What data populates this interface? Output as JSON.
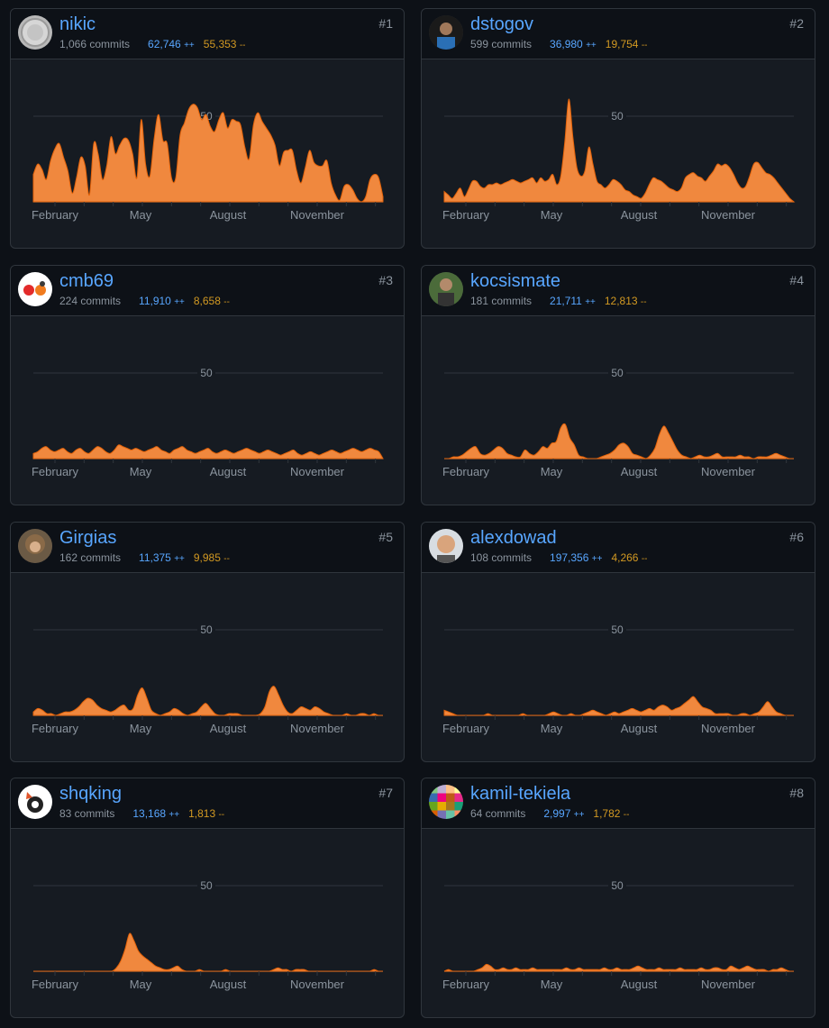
{
  "y_axis_label": "50",
  "months": [
    "February",
    "May",
    "August",
    "November"
  ],
  "colors": {
    "accent": "#58a6ff",
    "area": "#f0883e",
    "deletions": "#d29922",
    "background": "#0d1117"
  },
  "contributors": [
    {
      "rank": "#1",
      "username": "nikic",
      "commits": "1,066 commits",
      "additions": "62,746",
      "deletions": "55,353",
      "add_suffix": "++",
      "del_suffix": "--",
      "avatar_icon": "grey-coin-avatar",
      "weekly_commits": [
        16,
        22,
        19,
        13,
        24,
        31,
        34,
        26,
        18,
        5,
        14,
        26,
        21,
        4,
        34,
        28,
        13,
        21,
        38,
        28,
        33,
        37,
        36,
        28,
        14,
        48,
        22,
        15,
        37,
        51,
        36,
        34,
        14,
        14,
        39,
        46,
        54,
        57,
        55,
        48,
        51,
        44,
        41,
        48,
        52,
        43,
        48,
        47,
        45,
        32,
        25,
        45,
        52,
        47,
        43,
        39,
        33,
        21,
        29,
        30,
        30,
        18,
        11,
        20,
        30,
        23,
        21,
        21,
        24,
        11,
        4,
        1,
        9,
        10,
        7,
        2,
        0,
        3,
        13,
        16,
        14,
        3
      ]
    },
    {
      "rank": "#2",
      "username": "dstogov",
      "commits": "599 commits",
      "additions": "36,980",
      "deletions": "19,754",
      "add_suffix": "++",
      "del_suffix": "--",
      "avatar_icon": "man-photo-avatar",
      "weekly_commits": [
        6,
        4,
        2,
        5,
        8,
        3,
        7,
        12,
        12,
        9,
        8,
        10,
        10,
        11,
        10,
        11,
        12,
        13,
        12,
        11,
        12,
        13,
        14,
        11,
        14,
        12,
        13,
        16,
        10,
        15,
        35,
        60,
        38,
        20,
        15,
        18,
        32,
        22,
        12,
        10,
        8,
        10,
        13,
        12,
        10,
        7,
        6,
        4,
        3,
        2,
        5,
        10,
        14,
        13,
        12,
        10,
        8,
        7,
        6,
        8,
        14,
        16,
        17,
        15,
        14,
        12,
        15,
        18,
        22,
        21,
        22,
        20,
        16,
        11,
        8,
        9,
        15,
        22,
        23,
        20,
        17,
        16,
        14,
        11,
        8,
        5,
        2,
        0
      ]
    },
    {
      "rank": "#3",
      "username": "cmb69",
      "commits": "224 commits",
      "additions": "11,910",
      "deletions": "8,658",
      "add_suffix": "++",
      "del_suffix": "--",
      "avatar_icon": "elephant-avatar",
      "weekly_commits": [
        3,
        4,
        6,
        7,
        5,
        4,
        5,
        6,
        4,
        3,
        5,
        6,
        4,
        3,
        5,
        7,
        6,
        4,
        3,
        5,
        8,
        7,
        6,
        5,
        6,
        5,
        4,
        5,
        6,
        7,
        5,
        4,
        3,
        5,
        6,
        7,
        5,
        4,
        3,
        4,
        5,
        6,
        4,
        3,
        4,
        5,
        4,
        3,
        4,
        5,
        6,
        5,
        4,
        3,
        4,
        5,
        4,
        3,
        2,
        3,
        4,
        5,
        3,
        2,
        3,
        4,
        3,
        2,
        3,
        4,
        5,
        4,
        3,
        4,
        5,
        6,
        5,
        4,
        5,
        6,
        5,
        4,
        0
      ]
    },
    {
      "rank": "#4",
      "username": "kocsismate",
      "commits": "181 commits",
      "additions": "21,711",
      "deletions": "12,813",
      "add_suffix": "++",
      "del_suffix": "--",
      "avatar_icon": "man-forest-avatar",
      "weekly_commits": [
        0,
        0,
        1,
        1,
        2,
        4,
        6,
        7,
        3,
        2,
        3,
        5,
        7,
        6,
        3,
        2,
        1,
        1,
        5,
        3,
        2,
        4,
        7,
        6,
        9,
        10,
        18,
        20,
        12,
        8,
        2,
        1,
        0,
        0,
        0,
        1,
        2,
        3,
        5,
        8,
        9,
        7,
        3,
        2,
        1,
        0,
        2,
        6,
        14,
        19,
        15,
        10,
        5,
        2,
        1,
        0,
        1,
        2,
        1,
        1,
        2,
        3,
        1,
        1,
        1,
        1,
        2,
        1,
        1,
        0,
        1,
        1,
        1,
        2,
        3,
        2,
        1,
        0,
        0
      ]
    },
    {
      "rank": "#5",
      "username": "Girgias",
      "commits": "162 commits",
      "additions": "11,375",
      "deletions": "9,985",
      "add_suffix": "++",
      "del_suffix": "--",
      "avatar_icon": "curly-hair-avatar",
      "weekly_commits": [
        2,
        4,
        3,
        1,
        1,
        0,
        1,
        2,
        2,
        3,
        5,
        8,
        10,
        9,
        6,
        4,
        3,
        2,
        3,
        5,
        6,
        3,
        4,
        12,
        16,
        10,
        3,
        1,
        0,
        1,
        2,
        4,
        3,
        1,
        0,
        1,
        2,
        5,
        7,
        4,
        1,
        0,
        0,
        1,
        1,
        1,
        0,
        0,
        0,
        0,
        1,
        5,
        14,
        17,
        12,
        6,
        2,
        1,
        3,
        5,
        4,
        3,
        5,
        4,
        2,
        1,
        0,
        0,
        0,
        1,
        0,
        0,
        1,
        1,
        0,
        1,
        0,
        0
      ]
    },
    {
      "rank": "#6",
      "username": "alexdowad",
      "commits": "108 commits",
      "additions": "197,356",
      "deletions": "4,266",
      "add_suffix": "++",
      "del_suffix": "--",
      "avatar_icon": "smiling-man-avatar",
      "weekly_commits": [
        3,
        2,
        1,
        0,
        0,
        0,
        0,
        0,
        0,
        0,
        1,
        0,
        0,
        0,
        0,
        0,
        0,
        0,
        1,
        0,
        0,
        0,
        0,
        0,
        1,
        2,
        1,
        0,
        0,
        1,
        0,
        0,
        1,
        2,
        3,
        2,
        1,
        0,
        1,
        2,
        1,
        2,
        3,
        4,
        3,
        2,
        3,
        4,
        3,
        5,
        6,
        5,
        3,
        4,
        5,
        7,
        9,
        11,
        8,
        5,
        4,
        3,
        1,
        1,
        1,
        1,
        0,
        0,
        1,
        1,
        0,
        1,
        2,
        5,
        8,
        5,
        2,
        1,
        0,
        0,
        0
      ]
    },
    {
      "rank": "#7",
      "username": "shqking",
      "commits": "83 commits",
      "additions": "13,168",
      "deletions": "1,813",
      "add_suffix": "++",
      "del_suffix": "--",
      "avatar_icon": "cartoon-animal-avatar",
      "weekly_commits": [
        0,
        0,
        0,
        0,
        0,
        0,
        0,
        0,
        0,
        0,
        0,
        0,
        0,
        0,
        0,
        0,
        0,
        0,
        0,
        2,
        6,
        13,
        22,
        18,
        12,
        9,
        7,
        5,
        3,
        2,
        1,
        1,
        2,
        3,
        1,
        0,
        0,
        0,
        1,
        0,
        0,
        0,
        0,
        0,
        1,
        0,
        0,
        0,
        0,
        0,
        0,
        0,
        0,
        0,
        0,
        1,
        2,
        1,
        1,
        0,
        1,
        1,
        1,
        0,
        0,
        0,
        0,
        0,
        0,
        0,
        0,
        0,
        0,
        0,
        0,
        0,
        0,
        0,
        1,
        0,
        0
      ]
    },
    {
      "rank": "#8",
      "username": "kamil-tekiela",
      "commits": "64 commits",
      "additions": "2,997",
      "deletions": "1,782",
      "add_suffix": "++",
      "del_suffix": "--",
      "avatar_icon": "pixel-mosaic-avatar",
      "weekly_commits": [
        0,
        1,
        0,
        0,
        0,
        0,
        0,
        0,
        1,
        2,
        4,
        3,
        1,
        1,
        2,
        1,
        1,
        2,
        1,
        1,
        1,
        2,
        1,
        1,
        1,
        1,
        1,
        1,
        1,
        2,
        1,
        1,
        2,
        1,
        1,
        1,
        1,
        1,
        2,
        1,
        1,
        2,
        1,
        1,
        1,
        2,
        3,
        2,
        1,
        1,
        1,
        2,
        1,
        1,
        1,
        1,
        2,
        1,
        1,
        1,
        1,
        2,
        1,
        1,
        2,
        2,
        1,
        1,
        3,
        2,
        1,
        2,
        3,
        2,
        1,
        1,
        1,
        0,
        1,
        1,
        2,
        1,
        0,
        0
      ]
    }
  ]
}
